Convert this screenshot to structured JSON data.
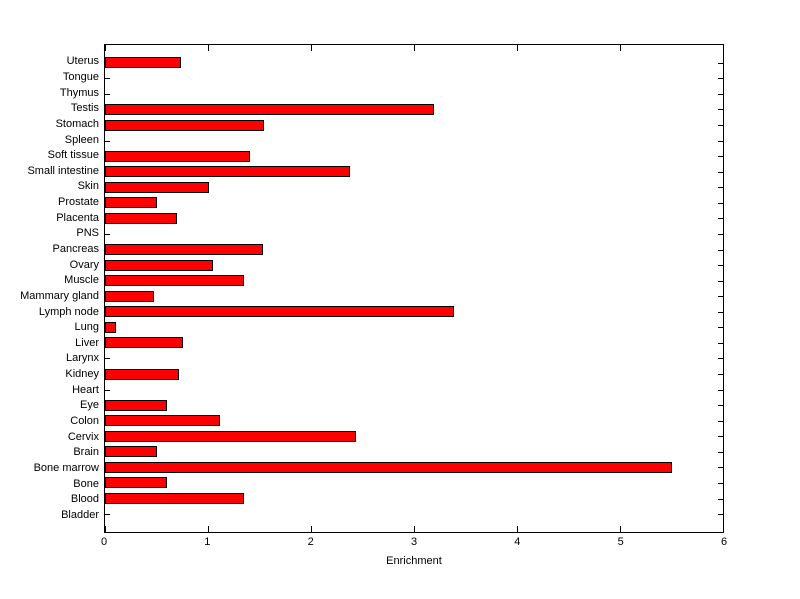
{
  "chart_data": {
    "type": "bar",
    "orientation": "horizontal",
    "title": "",
    "xlabel": "Enrichment",
    "ylabel": "",
    "xlim": [
      0,
      6
    ],
    "xticks": [
      0,
      1,
      2,
      3,
      4,
      5,
      6
    ],
    "grid": false,
    "legend": "none",
    "bar_color": "#ff0000",
    "bar_edge_color": "#000000",
    "axis_color": "#000000",
    "background_color": "#ffffff",
    "categories": [
      "Uterus",
      "Tongue",
      "Thymus",
      "Testis",
      "Stomach",
      "Spleen",
      "Soft tissue",
      "Small intestine",
      "Skin",
      "Prostate",
      "Placenta",
      "PNS",
      "Pancreas",
      "Ovary",
      "Muscle",
      "Mammary gland",
      "Lymph node",
      "Lung",
      "Liver",
      "Larynx",
      "Kidney",
      "Heart",
      "Eye",
      "Colon",
      "Cervix",
      "Brain",
      "Bone marrow",
      "Bone",
      "Blood",
      "Bladder"
    ],
    "values": [
      0.74,
      0,
      0,
      3.19,
      1.54,
      0,
      1.41,
      2.38,
      1.01,
      0.5,
      0.7,
      0,
      1.53,
      1.05,
      1.35,
      0.48,
      3.39,
      0.11,
      0.76,
      0,
      0.72,
      0,
      0.6,
      1.12,
      2.44,
      0.5,
      5.5,
      0.6,
      1.35,
      0
    ]
  }
}
